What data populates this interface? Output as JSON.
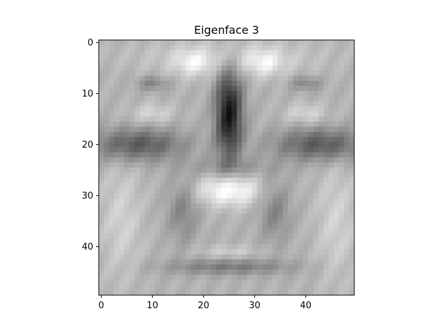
{
  "figure": {
    "background": "#ffffff"
  },
  "chart_data": {
    "type": "heatmap",
    "title": "Eigenface 3",
    "xlabel": "",
    "ylabel": "",
    "colormap": "gray",
    "shape": [
      50,
      50
    ],
    "xlim": [
      -0.5,
      49.5
    ],
    "ylim": [
      49.5,
      -0.5
    ],
    "y_axis_inverted": true,
    "grid": false,
    "xticks": [
      0,
      10,
      20,
      30,
      40
    ],
    "yticks": [
      0,
      10,
      20,
      30,
      40
    ],
    "xtick_labels": [
      "0",
      "10",
      "20",
      "30",
      "40"
    ],
    "ytick_labels": [
      "0",
      "10",
      "20",
      "30",
      "40"
    ]
  }
}
